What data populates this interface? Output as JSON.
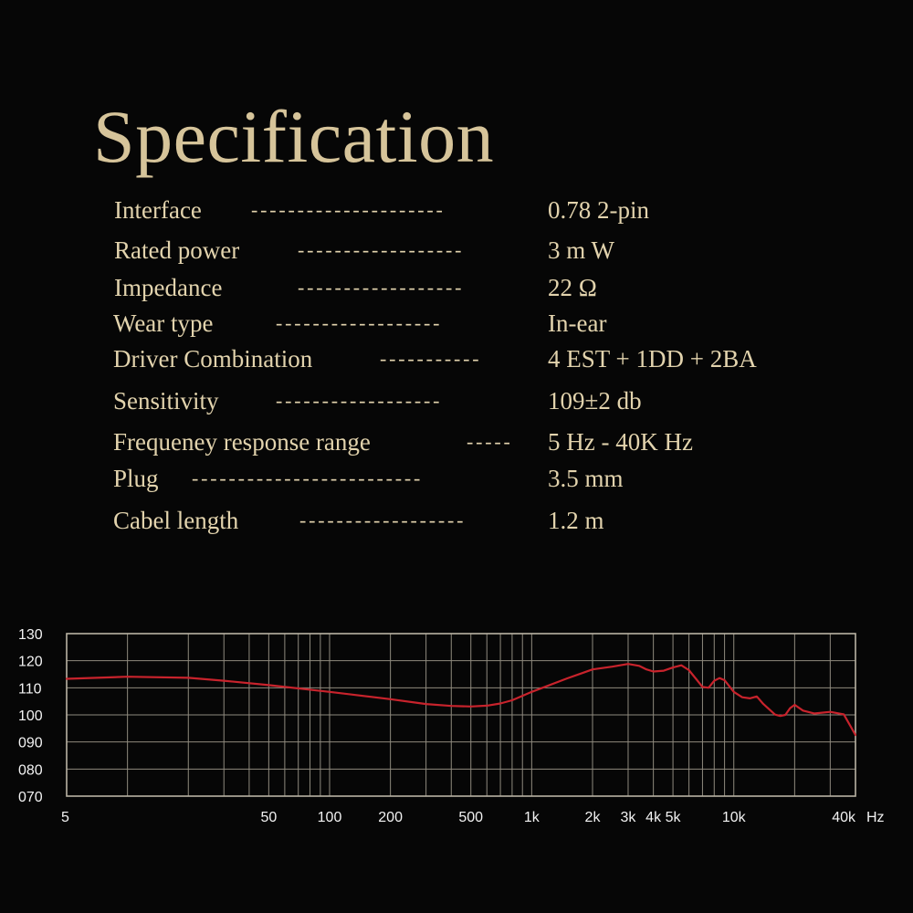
{
  "title": "Specification",
  "specs": [
    {
      "label": "Interface",
      "dots": "---------------------",
      "value": "0.78 2-pin"
    },
    {
      "label": "Rated power",
      "dots": "------------------",
      "value": "3 m W"
    },
    {
      "label": "Impedance",
      "dots": "------------------",
      "value": "22 Ω"
    },
    {
      "label": "Wear type",
      "dots": "------------------",
      "value": "In-ear"
    },
    {
      "label": "Driver Combination",
      "dots": "-----------",
      "value": "4 EST + 1DD + 2BA"
    },
    {
      "label": "Sensitivity",
      "dots": "------------------",
      "value": "109±2 db"
    },
    {
      "label": "Frequeney response range",
      "dots": "-----",
      "value": "5 Hz - 40K Hz"
    },
    {
      "label": "Plug",
      "dots": "-------------------------",
      "value": "3.5 mm"
    },
    {
      "label": "Cabel length",
      "dots": "------------------",
      "value": "1.2 m"
    }
  ],
  "chart_data": {
    "type": "line",
    "title": "",
    "xlabel": "",
    "ylabel": "",
    "x_scale": "log",
    "xlim": [
      5,
      40000
    ],
    "ylim": [
      70,
      130
    ],
    "grid": true,
    "x_tick_labels": [
      {
        "value": 5,
        "label": "5"
      },
      {
        "value": 50,
        "label": "50"
      },
      {
        "value": 100,
        "label": "100"
      },
      {
        "value": 200,
        "label": "200"
      },
      {
        "value": 500,
        "label": "500"
      },
      {
        "value": 1000,
        "label": "1k"
      },
      {
        "value": 2000,
        "label": "2k"
      },
      {
        "value": 3000,
        "label": "3k"
      },
      {
        "value": 4000,
        "label": "4k"
      },
      {
        "value": 5000,
        "label": "5k"
      },
      {
        "value": 10000,
        "label": "10k"
      },
      {
        "value": 40000,
        "label": "40k"
      }
    ],
    "x_unit": "Hz",
    "y_tick_labels": [
      "070",
      "080",
      "090",
      "100",
      "110",
      "120",
      "130"
    ],
    "y_tick_values": [
      70,
      80,
      90,
      100,
      110,
      120,
      130
    ],
    "x_grid_values": [
      10,
      20,
      30,
      40,
      50,
      60,
      70,
      80,
      90,
      100,
      200,
      300,
      400,
      500,
      600,
      700,
      800,
      900,
      1000,
      2000,
      3000,
      4000,
      5000,
      6000,
      7000,
      8000,
      9000,
      10000,
      20000,
      30000,
      40000
    ],
    "series": [
      {
        "color": "#c8232c",
        "x": [
          5,
          10,
          20,
          30,
          50,
          100,
          200,
          300,
          400,
          500,
          600,
          700,
          800,
          1000,
          1500,
          2000,
          2500,
          3000,
          3400,
          3700,
          4000,
          4500,
          5000,
          5500,
          6000,
          6500,
          7000,
          7500,
          8000,
          8500,
          9000,
          10000,
          11000,
          12000,
          13000,
          14000,
          15000,
          16000,
          17000,
          18000,
          19000,
          20000,
          22000,
          25000,
          30000,
          35000,
          40000
        ],
        "y": [
          113.3,
          114.1,
          113.7,
          112.6,
          111.0,
          108.5,
          105.8,
          104.0,
          103.3,
          103.1,
          103.4,
          104.2,
          105.4,
          108.5,
          113.5,
          116.8,
          117.8,
          118.8,
          118.1,
          116.8,
          116.0,
          116.3,
          117.5,
          118.3,
          116.5,
          113.3,
          110.3,
          110.0,
          112.6,
          113.6,
          112.8,
          108.5,
          106.5,
          106.1,
          106.8,
          104.0,
          102.0,
          100.1,
          99.6,
          100.0,
          102.5,
          103.7,
          101.6,
          100.5,
          101.1,
          100.2,
          92.6
        ]
      }
    ]
  }
}
